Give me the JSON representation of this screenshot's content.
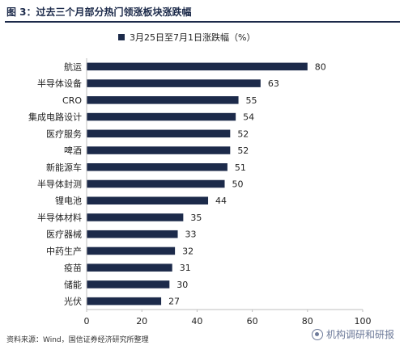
{
  "figure": {
    "title": "图 3：过去三个月部分热门领涨板块涨跌幅",
    "source": "资料来源：Wind，国信证券经济研究所整理",
    "watermark": "机构调研和研报"
  },
  "colors": {
    "bar": "#1c2a4a",
    "title": "#1c2a4a",
    "axis": "#bfbfbf",
    "watermark": "#6d7a99"
  },
  "chart_data": {
    "type": "bar",
    "orientation": "horizontal",
    "categories": [
      "航运",
      "半导体设备",
      "CRO",
      "集成电路设计",
      "医疗服务",
      "啤酒",
      "新能源车",
      "半导体封测",
      "锂电池",
      "半导体材料",
      "医疗器械",
      "中药生产",
      "疫苗",
      "储能",
      "光伏"
    ],
    "series": [
      {
        "name": "3月25日至7月1日涨跌幅（%）",
        "values": [
          80,
          63,
          55,
          54,
          52,
          52,
          51,
          50,
          44,
          35,
          33,
          32,
          31,
          30,
          27
        ]
      }
    ],
    "xlim": [
      0,
      100
    ],
    "xticks": [
      0,
      20,
      40,
      60,
      80,
      100
    ],
    "data_labels": true,
    "legend_position": "top",
    "grid": false
  }
}
